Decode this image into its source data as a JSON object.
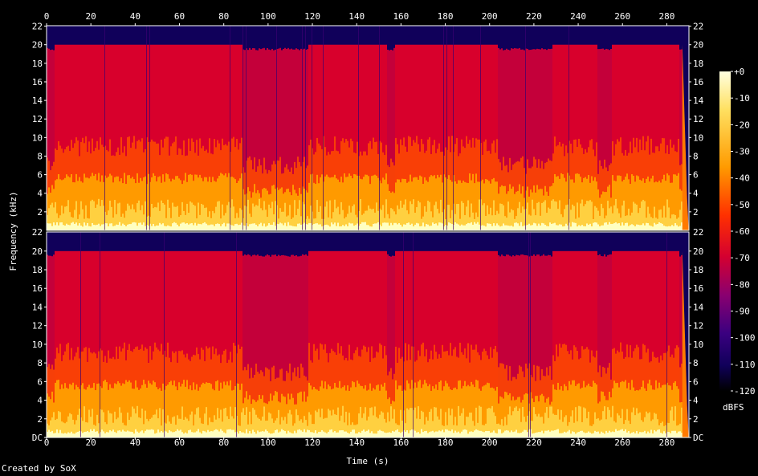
{
  "chart_data": {
    "type": "heatmap",
    "title": "",
    "xlabel": "Time (s)",
    "ylabel": "Frequency (kHz)",
    "xlim": [
      0,
      290
    ],
    "ylim": [
      0,
      22.05
    ],
    "x_ticks": [
      "0",
      "20",
      "40",
      "60",
      "80",
      "100",
      "120",
      "140",
      "160",
      "180",
      "200",
      "220",
      "240",
      "260",
      "280"
    ],
    "y_ticks_top_channel": [
      "2",
      "4",
      "6",
      "8",
      "10",
      "12",
      "14",
      "16",
      "18",
      "20",
      "22"
    ],
    "y_ticks_bottom_channel": [
      "DC",
      "2",
      "4",
      "6",
      "8",
      "10",
      "12",
      "14",
      "16",
      "18",
      "20"
    ],
    "y_ticks_top_edge": "22",
    "channels": 2,
    "colorbar": {
      "label": "dBFS",
      "ticks": [
        "+0",
        "-10",
        "-20",
        "-30",
        "-40",
        "-50",
        "-60",
        "-70",
        "-80",
        "-90",
        "-100",
        "-110",
        "-120"
      ],
      "range": [
        -120,
        0
      ]
    },
    "audio_end_s": 287,
    "content_cutoff_khz": 20,
    "loud_sections_s": [
      [
        3,
        45
      ],
      [
        45,
        88
      ],
      [
        118,
        153
      ],
      [
        157,
        203
      ],
      [
        228,
        248
      ],
      [
        255,
        285
      ]
    ],
    "colors": {
      "background": "#000000",
      "floor": "#10005a",
      "mid": "#d40030",
      "high": "#ff9a00",
      "peak": "#ffffc0"
    }
  },
  "footer": {
    "credit": "Created by SoX"
  }
}
